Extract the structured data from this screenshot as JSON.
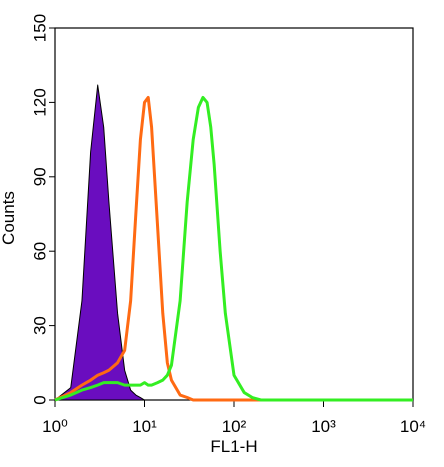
{
  "chart_data": {
    "type": "histogram-overlay",
    "x_label": "FL1-H",
    "y_label": "Counts",
    "log_x": true,
    "xlim": [
      1,
      10000
    ],
    "xticks": [
      {
        "value": 1,
        "label": "10⁰"
      },
      {
        "value": 10,
        "label": "10¹"
      },
      {
        "value": 100,
        "label": "10²"
      },
      {
        "value": 1000,
        "label": "10³"
      },
      {
        "value": 10000,
        "label": "10⁴"
      }
    ],
    "ylim": [
      0,
      150
    ],
    "yticks": [
      0,
      30,
      60,
      90,
      120,
      150
    ],
    "x": [
      1,
      1.5,
      2,
      2.5,
      3,
      3.5,
      4,
      5,
      6,
      7,
      8,
      9,
      10,
      11,
      12,
      14,
      16,
      18,
      20,
      25,
      30,
      35,
      40,
      45,
      50,
      55,
      60,
      70,
      80,
      100,
      130,
      160,
      200,
      1000,
      10000
    ],
    "series": [
      {
        "color": "#6a0dbf",
        "filled": true,
        "values": [
          0,
          5,
          40,
          100,
          127,
          110,
          80,
          35,
          12,
          4,
          2,
          1,
          0,
          0,
          0,
          0,
          0,
          0,
          0,
          0,
          0,
          0,
          0,
          0,
          0,
          0,
          0,
          0,
          0,
          0,
          0,
          0,
          0,
          0,
          0
        ]
      },
      {
        "color": "#ff6a13",
        "filled": false,
        "values": [
          0,
          3,
          6,
          8,
          10,
          11,
          12,
          15,
          20,
          40,
          75,
          105,
          120,
          122,
          110,
          70,
          35,
          15,
          8,
          2,
          1,
          0,
          0,
          0,
          0,
          0,
          0,
          0,
          0,
          0,
          0,
          0,
          0,
          0,
          0
        ]
      },
      {
        "color": "#33ee22",
        "filled": false,
        "values": [
          0,
          2,
          4,
          5,
          6,
          7,
          7,
          7,
          6,
          6,
          6,
          6,
          7,
          6,
          6,
          7,
          8,
          10,
          14,
          40,
          80,
          105,
          118,
          122,
          120,
          110,
          95,
          60,
          35,
          10,
          3,
          1,
          0,
          0,
          0
        ]
      }
    ]
  }
}
